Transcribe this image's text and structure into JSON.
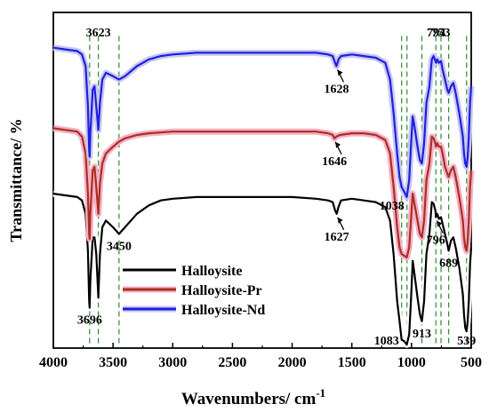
{
  "chart_data": {
    "type": "line",
    "title": "",
    "xlabel": "Wavenumbers/ cm",
    "xlabel_superscript": "-1",
    "ylabel": "Transmittance/ %",
    "xlim": [
      4000,
      500
    ],
    "x_reversed": true,
    "xticks": [
      4000,
      3500,
      3000,
      2500,
      2000,
      1500,
      1000,
      500
    ],
    "xtick_labels": [
      "4000",
      "3500",
      "3000",
      "2500",
      "2000",
      "1500",
      "1000",
      "500"
    ],
    "y_ticks_shown": false,
    "grid": false,
    "legend_position": "bottom-center",
    "series": [
      {
        "name": "Halloysite",
        "color": "#000000",
        "band": "#ffffff",
        "points": [
          [
            4000,
            0.54
          ],
          [
            3900,
            0.545
          ],
          [
            3800,
            0.55
          ],
          [
            3760,
            0.56
          ],
          [
            3730,
            0.6
          ],
          [
            3710,
            0.71
          ],
          [
            3700,
            0.86
          ],
          [
            3696,
            0.88
          ],
          [
            3690,
            0.8
          ],
          [
            3670,
            0.67
          ],
          [
            3655,
            0.67
          ],
          [
            3640,
            0.72
          ],
          [
            3623,
            0.85
          ],
          [
            3610,
            0.72
          ],
          [
            3590,
            0.64
          ],
          [
            3560,
            0.62
          ],
          [
            3500,
            0.64
          ],
          [
            3450,
            0.66
          ],
          [
            3400,
            0.64
          ],
          [
            3300,
            0.6
          ],
          [
            3200,
            0.575
          ],
          [
            3100,
            0.56
          ],
          [
            3000,
            0.555
          ],
          [
            2800,
            0.55
          ],
          [
            2500,
            0.55
          ],
          [
            2200,
            0.55
          ],
          [
            2000,
            0.55
          ],
          [
            1800,
            0.555
          ],
          [
            1700,
            0.56
          ],
          [
            1660,
            0.565
          ],
          [
            1640,
            0.59
          ],
          [
            1627,
            0.6
          ],
          [
            1612,
            0.58
          ],
          [
            1590,
            0.56
          ],
          [
            1500,
            0.555
          ],
          [
            1400,
            0.56
          ],
          [
            1300,
            0.565
          ],
          [
            1220,
            0.58
          ],
          [
            1180,
            0.62
          ],
          [
            1150,
            0.72
          ],
          [
            1120,
            0.86
          ],
          [
            1100,
            0.92
          ],
          [
            1083,
            0.975
          ],
          [
            1060,
            0.98
          ],
          [
            1040,
            0.99
          ],
          [
            1020,
            0.96
          ],
          [
            1005,
            0.86
          ],
          [
            990,
            0.74
          ],
          [
            975,
            0.78
          ],
          [
            950,
            0.85
          ],
          [
            930,
            0.9
          ],
          [
            913,
            0.92
          ],
          [
            895,
            0.86
          ],
          [
            875,
            0.72
          ],
          [
            850,
            0.66
          ],
          [
            830,
            0.565
          ],
          [
            815,
            0.57
          ],
          [
            800,
            0.59
          ],
          [
            796,
            0.61
          ],
          [
            785,
            0.6
          ],
          [
            770,
            0.615
          ],
          [
            753,
            0.61
          ],
          [
            740,
            0.63
          ],
          [
            720,
            0.66
          ],
          [
            700,
            0.69
          ],
          [
            689,
            0.71
          ],
          [
            670,
            0.68
          ],
          [
            650,
            0.67
          ],
          [
            630,
            0.7
          ],
          [
            600,
            0.76
          ],
          [
            570,
            0.84
          ],
          [
            560,
            0.9
          ],
          [
            550,
            0.94
          ],
          [
            539,
            0.95
          ],
          [
            530,
            0.92
          ],
          [
            520,
            0.86
          ],
          [
            510,
            0.75
          ],
          [
            500,
            0.7
          ]
        ]
      },
      {
        "name": "Halloysite-Pr",
        "color": "#a93020",
        "band": "#f5b0c8",
        "points": [
          [
            4000,
            0.345
          ],
          [
            3900,
            0.35
          ],
          [
            3800,
            0.355
          ],
          [
            3760,
            0.37
          ],
          [
            3730,
            0.42
          ],
          [
            3710,
            0.54
          ],
          [
            3700,
            0.66
          ],
          [
            3696,
            0.675
          ],
          [
            3690,
            0.6
          ],
          [
            3670,
            0.47
          ],
          [
            3655,
            0.46
          ],
          [
            3640,
            0.52
          ],
          [
            3623,
            0.6
          ],
          [
            3610,
            0.51
          ],
          [
            3590,
            0.45
          ],
          [
            3560,
            0.42
          ],
          [
            3500,
            0.4
          ],
          [
            3450,
            0.385
          ],
          [
            3400,
            0.375
          ],
          [
            3300,
            0.365
          ],
          [
            3200,
            0.36
          ],
          [
            3000,
            0.355
          ],
          [
            2800,
            0.355
          ],
          [
            2500,
            0.355
          ],
          [
            2200,
            0.355
          ],
          [
            2000,
            0.355
          ],
          [
            1800,
            0.355
          ],
          [
            1700,
            0.36
          ],
          [
            1660,
            0.365
          ],
          [
            1646,
            0.375
          ],
          [
            1630,
            0.37
          ],
          [
            1600,
            0.365
          ],
          [
            1500,
            0.36
          ],
          [
            1400,
            0.36
          ],
          [
            1300,
            0.365
          ],
          [
            1220,
            0.38
          ],
          [
            1180,
            0.42
          ],
          [
            1150,
            0.52
          ],
          [
            1120,
            0.64
          ],
          [
            1100,
            0.7
          ],
          [
            1083,
            0.72
          ],
          [
            1060,
            0.725
          ],
          [
            1040,
            0.73
          ],
          [
            1020,
            0.7
          ],
          [
            1005,
            0.62
          ],
          [
            990,
            0.54
          ],
          [
            975,
            0.57
          ],
          [
            950,
            0.62
          ],
          [
            930,
            0.66
          ],
          [
            913,
            0.67
          ],
          [
            895,
            0.62
          ],
          [
            875,
            0.5
          ],
          [
            850,
            0.45
          ],
          [
            830,
            0.37
          ],
          [
            815,
            0.375
          ],
          [
            800,
            0.39
          ],
          [
            796,
            0.4
          ],
          [
            785,
            0.39
          ],
          [
            770,
            0.4
          ],
          [
            753,
            0.4
          ],
          [
            740,
            0.42
          ],
          [
            720,
            0.46
          ],
          [
            700,
            0.48
          ],
          [
            689,
            0.49
          ],
          [
            670,
            0.47
          ],
          [
            650,
            0.46
          ],
          [
            630,
            0.49
          ],
          [
            600,
            0.55
          ],
          [
            570,
            0.62
          ],
          [
            560,
            0.67
          ],
          [
            550,
            0.7
          ],
          [
            539,
            0.71
          ],
          [
            530,
            0.68
          ],
          [
            520,
            0.62
          ],
          [
            510,
            0.52
          ],
          [
            500,
            0.47
          ]
        ]
      },
      {
        "name": "Halloysite-Nd",
        "color": "#1f1fe0",
        "band": "#c8c8f0",
        "points": [
          [
            4000,
            0.105
          ],
          [
            3900,
            0.11
          ],
          [
            3800,
            0.115
          ],
          [
            3760,
            0.125
          ],
          [
            3730,
            0.16
          ],
          [
            3710,
            0.28
          ],
          [
            3700,
            0.41
          ],
          [
            3696,
            0.43
          ],
          [
            3690,
            0.36
          ],
          [
            3670,
            0.23
          ],
          [
            3655,
            0.22
          ],
          [
            3640,
            0.28
          ],
          [
            3623,
            0.35
          ],
          [
            3610,
            0.27
          ],
          [
            3590,
            0.2
          ],
          [
            3560,
            0.18
          ],
          [
            3500,
            0.19
          ],
          [
            3450,
            0.2
          ],
          [
            3400,
            0.19
          ],
          [
            3300,
            0.16
          ],
          [
            3200,
            0.14
          ],
          [
            3100,
            0.13
          ],
          [
            3000,
            0.125
          ],
          [
            2800,
            0.12
          ],
          [
            2500,
            0.12
          ],
          [
            2200,
            0.12
          ],
          [
            2000,
            0.12
          ],
          [
            1800,
            0.12
          ],
          [
            1700,
            0.125
          ],
          [
            1660,
            0.13
          ],
          [
            1640,
            0.15
          ],
          [
            1628,
            0.16
          ],
          [
            1612,
            0.14
          ],
          [
            1590,
            0.13
          ],
          [
            1500,
            0.125
          ],
          [
            1400,
            0.13
          ],
          [
            1300,
            0.135
          ],
          [
            1220,
            0.15
          ],
          [
            1180,
            0.2
          ],
          [
            1150,
            0.3
          ],
          [
            1120,
            0.42
          ],
          [
            1100,
            0.49
          ],
          [
            1083,
            0.52
          ],
          [
            1060,
            0.535
          ],
          [
            1040,
            0.55
          ],
          [
            1020,
            0.5
          ],
          [
            1005,
            0.4
          ],
          [
            990,
            0.31
          ],
          [
            975,
            0.34
          ],
          [
            950,
            0.4
          ],
          [
            930,
            0.44
          ],
          [
            913,
            0.45
          ],
          [
            895,
            0.39
          ],
          [
            875,
            0.27
          ],
          [
            850,
            0.22
          ],
          [
            830,
            0.14
          ],
          [
            815,
            0.13
          ],
          [
            800,
            0.145
          ],
          [
            794,
            0.15
          ],
          [
            785,
            0.14
          ],
          [
            770,
            0.15
          ],
          [
            753,
            0.145
          ],
          [
            740,
            0.17
          ],
          [
            720,
            0.2
          ],
          [
            700,
            0.23
          ],
          [
            689,
            0.24
          ],
          [
            670,
            0.22
          ],
          [
            650,
            0.21
          ],
          [
            630,
            0.24
          ],
          [
            600,
            0.3
          ],
          [
            570,
            0.37
          ],
          [
            560,
            0.42
          ],
          [
            550,
            0.45
          ],
          [
            539,
            0.46
          ],
          [
            530,
            0.43
          ],
          [
            520,
            0.37
          ],
          [
            510,
            0.27
          ],
          [
            500,
            0.22
          ]
        ]
      }
    ],
    "reference_lines": [
      3696,
      3623,
      3450,
      1083,
      1038,
      913,
      796,
      753,
      689,
      539
    ],
    "annotations": [
      {
        "text": "3623",
        "x": 3623,
        "series": "Halloysite-Nd",
        "place": "above"
      },
      {
        "text": "1628",
        "x": 1628,
        "series": "Halloysite-Nd",
        "place": "below",
        "arrow": true
      },
      {
        "text": "794",
        "x": 794,
        "series": "Halloysite-Nd",
        "place": "above"
      },
      {
        "text": "753",
        "x": 753,
        "series": "Halloysite-Nd",
        "place": "above"
      },
      {
        "text": "1038",
        "x": 1038,
        "series": "Halloysite-Nd",
        "place": "below-left"
      },
      {
        "text": "1646",
        "x": 1646,
        "series": "Halloysite-Pr",
        "place": "below",
        "arrow": true
      },
      {
        "text": "1627",
        "x": 1627,
        "series": "Halloysite",
        "place": "below",
        "arrow": true
      },
      {
        "text": "3450",
        "x": 3450,
        "series": "Halloysite",
        "place": "below"
      },
      {
        "text": "3696",
        "x": 3696,
        "series": "Halloysite",
        "place": "below"
      },
      {
        "text": "1083",
        "x": 1083,
        "series": "Halloysite",
        "place": "below-left"
      },
      {
        "text": "913",
        "x": 913,
        "series": "Halloysite",
        "place": "below"
      },
      {
        "text": "796",
        "x": 796,
        "series": "Halloysite",
        "place": "below",
        "arrow": true
      },
      {
        "text": "689",
        "x": 689,
        "series": "Halloysite",
        "place": "below"
      },
      {
        "text": "539",
        "x": 539,
        "series": "Halloysite",
        "place": "below"
      }
    ]
  }
}
